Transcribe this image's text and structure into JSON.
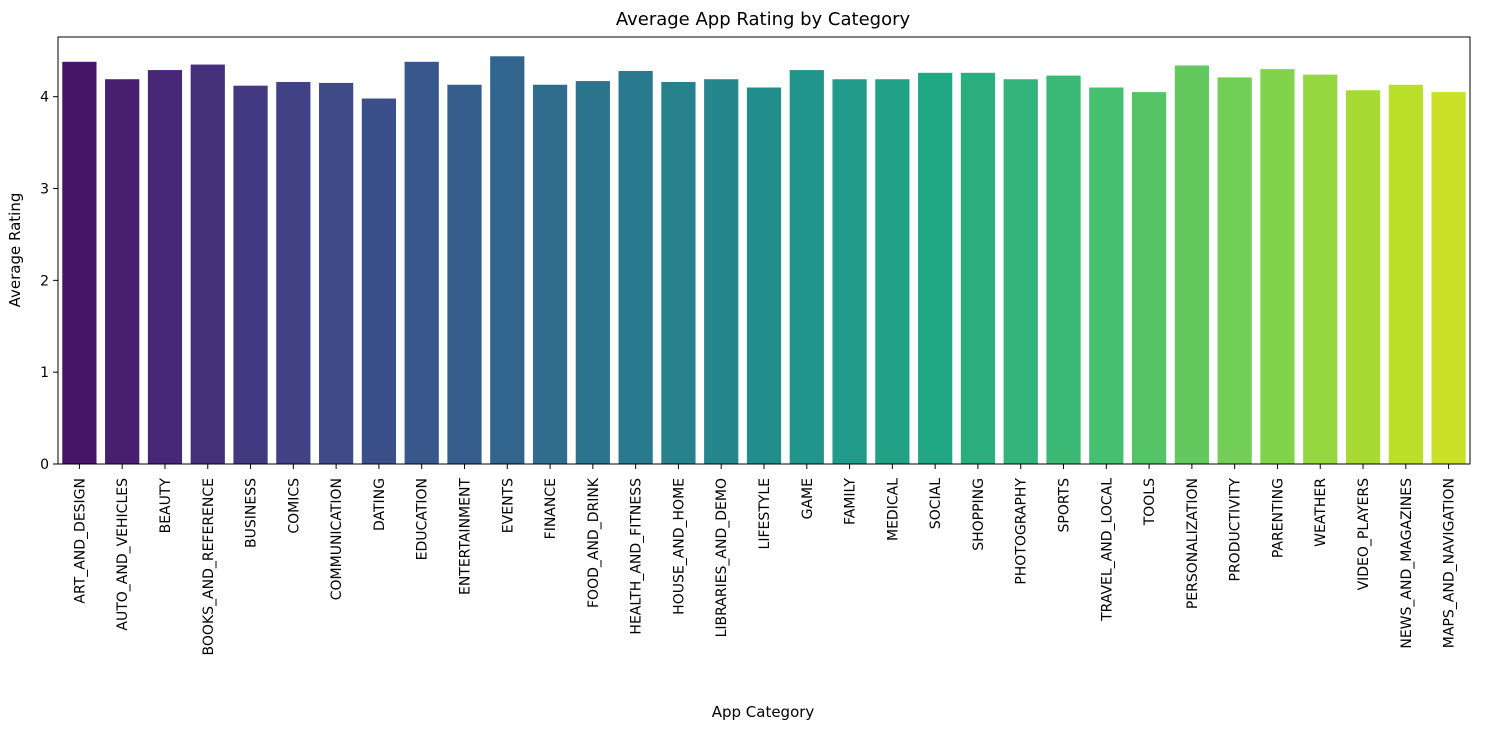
{
  "chart_data": {
    "type": "bar",
    "title": "Average App Rating by Category",
    "xlabel": "App Category",
    "ylabel": "Average Rating",
    "ylim": [
      0,
      4.65
    ],
    "yticks": [
      0,
      1,
      2,
      3,
      4
    ],
    "grid": false,
    "legend": "none",
    "palette": "viridis",
    "categories": [
      "ART_AND_DESIGN",
      "AUTO_AND_VEHICLES",
      "BEAUTY",
      "BOOKS_AND_REFERENCE",
      "BUSINESS",
      "COMICS",
      "COMMUNICATION",
      "DATING",
      "EDUCATION",
      "ENTERTAINMENT",
      "EVENTS",
      "FINANCE",
      "FOOD_AND_DRINK",
      "HEALTH_AND_FITNESS",
      "HOUSE_AND_HOME",
      "LIBRARIES_AND_DEMO",
      "LIFESTYLE",
      "GAME",
      "FAMILY",
      "MEDICAL",
      "SOCIAL",
      "SHOPPING",
      "PHOTOGRAPHY",
      "SPORTS",
      "TRAVEL_AND_LOCAL",
      "TOOLS",
      "PERSONALIZATION",
      "PRODUCTIVITY",
      "PARENTING",
      "WEATHER",
      "VIDEO_PLAYERS",
      "NEWS_AND_MAGAZINES",
      "MAPS_AND_NAVIGATION"
    ],
    "values": [
      4.38,
      4.19,
      4.29,
      4.35,
      4.12,
      4.16,
      4.15,
      3.98,
      4.38,
      4.13,
      4.44,
      4.13,
      4.17,
      4.28,
      4.16,
      4.19,
      4.1,
      4.29,
      4.19,
      4.19,
      4.26,
      4.26,
      4.19,
      4.23,
      4.1,
      4.05,
      4.34,
      4.21,
      4.3,
      4.24,
      4.07,
      4.13,
      4.05
    ]
  }
}
